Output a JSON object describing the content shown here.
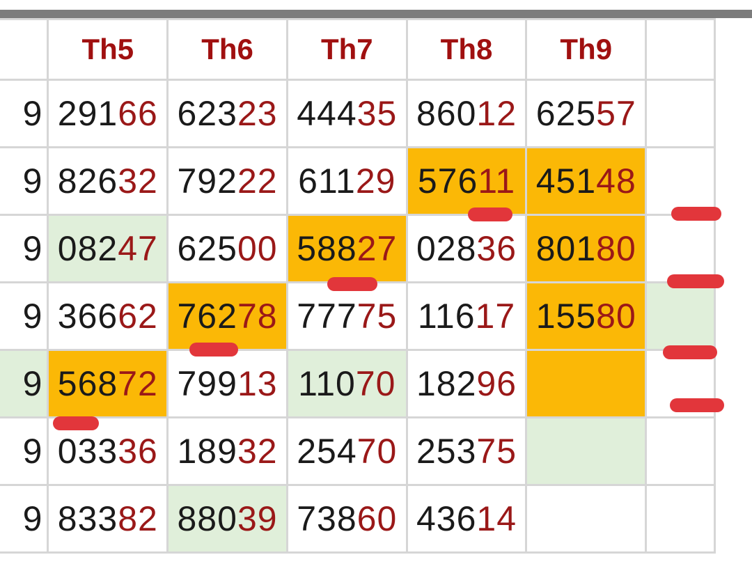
{
  "headers": [
    "",
    "Th5",
    "Th6",
    "Th7",
    "Th8",
    "Th9",
    ""
  ],
  "rows": [
    {
      "lead": "9",
      "cells": [
        {
          "head": "291",
          "tail": "66",
          "style": ""
        },
        {
          "head": "623",
          "tail": "23",
          "style": ""
        },
        {
          "head": "444",
          "tail": "35",
          "style": ""
        },
        {
          "head": "860",
          "tail": "12",
          "style": ""
        },
        {
          "head": "625",
          "tail": "57",
          "style": ""
        },
        {
          "head": "",
          "tail": "",
          "style": ""
        }
      ]
    },
    {
      "lead": "9",
      "cells": [
        {
          "head": "826",
          "tail": "32",
          "style": ""
        },
        {
          "head": "792",
          "tail": "22",
          "style": ""
        },
        {
          "head": "611",
          "tail": "29",
          "style": ""
        },
        {
          "head": "576",
          "tail": "11",
          "style": "hl"
        },
        {
          "head": "451",
          "tail": "48",
          "style": "hl"
        },
        {
          "head": "",
          "tail": "",
          "style": ""
        }
      ]
    },
    {
      "lead": "9",
      "cells": [
        {
          "head": "082",
          "tail": "47",
          "style": "gr"
        },
        {
          "head": "625",
          "tail": "00",
          "style": ""
        },
        {
          "head": "588",
          "tail": "27",
          "style": "hl"
        },
        {
          "head": "028",
          "tail": "36",
          "style": ""
        },
        {
          "head": "801",
          "tail": "80",
          "style": "hl"
        },
        {
          "head": "",
          "tail": "",
          "style": ""
        }
      ]
    },
    {
      "lead": "9",
      "cells": [
        {
          "head": "366",
          "tail": "62",
          "style": ""
        },
        {
          "head": "762",
          "tail": "78",
          "style": "hl"
        },
        {
          "head": "777",
          "tail": "75",
          "style": ""
        },
        {
          "head": "116",
          "tail": "17",
          "style": ""
        },
        {
          "head": "155",
          "tail": "80",
          "style": "hl"
        },
        {
          "head": "",
          "tail": "",
          "style": "gr"
        }
      ]
    },
    {
      "lead": "9",
      "leadStyle": "gr",
      "cells": [
        {
          "head": "568",
          "tail": "72",
          "style": "hl"
        },
        {
          "head": "799",
          "tail": "13",
          "style": ""
        },
        {
          "head": "110",
          "tail": "70",
          "style": "gr"
        },
        {
          "head": "182",
          "tail": "96",
          "style": ""
        },
        {
          "head": "",
          "tail": "",
          "style": "hl"
        },
        {
          "head": "",
          "tail": "",
          "style": ""
        }
      ]
    },
    {
      "lead": "9",
      "cells": [
        {
          "head": "033",
          "tail": "36",
          "style": ""
        },
        {
          "head": "189",
          "tail": "32",
          "style": ""
        },
        {
          "head": "254",
          "tail": "70",
          "style": ""
        },
        {
          "head": "253",
          "tail": "75",
          "style": ""
        },
        {
          "head": "",
          "tail": "",
          "style": "gr"
        },
        {
          "head": "",
          "tail": "",
          "style": ""
        }
      ]
    },
    {
      "lead": "9",
      "cells": [
        {
          "head": "833",
          "tail": "82",
          "style": ""
        },
        {
          "head": "880",
          "tail": "39",
          "style": "gr"
        },
        {
          "head": "738",
          "tail": "60",
          "style": ""
        },
        {
          "head": "436",
          "tail": "14",
          "style": ""
        },
        {
          "head": "",
          "tail": "",
          "style": ""
        },
        {
          "head": "",
          "tail": "",
          "style": ""
        }
      ]
    }
  ],
  "colors": {
    "highlight": "#fbb806",
    "green": "#e0efda",
    "header": "#a01010",
    "tail": "#9a1818",
    "mark": "#e2363b"
  }
}
